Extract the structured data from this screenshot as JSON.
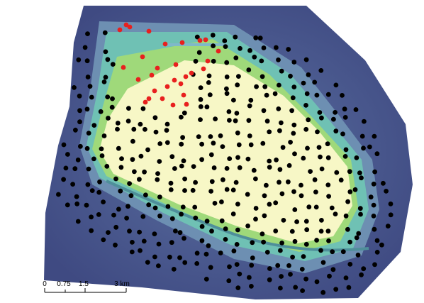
{
  "scale_bar": {
    "labels": [
      "0",
      "0.75",
      "1.5",
      "3 km"
    ]
  }
}
